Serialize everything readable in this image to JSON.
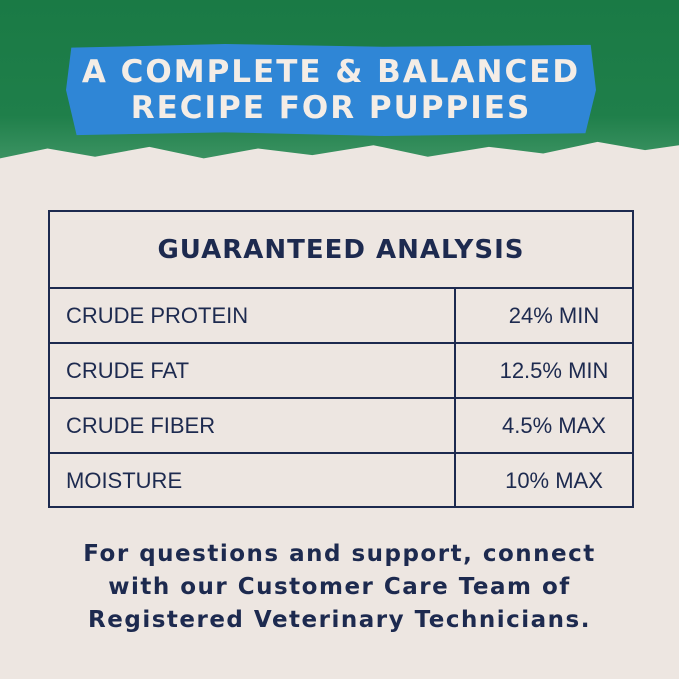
{
  "banner": {
    "line1": "A COMPLETE & BALANCED",
    "line2": "RECIPE FOR PUPPIES"
  },
  "table": {
    "title": "GUARANTEED ANALYSIS",
    "rows": [
      {
        "label": "CRUDE PROTEIN",
        "value": "24% MIN"
      },
      {
        "label": "CRUDE FAT",
        "value": "12.5% MIN"
      },
      {
        "label": "CRUDE FIBER",
        "value": "4.5% MAX"
      },
      {
        "label": "MOISTURE",
        "value": "10% MAX"
      }
    ]
  },
  "footer": {
    "line1": "For questions and support, connect",
    "line2": "with our Customer Care Team of",
    "line3": "Registered Veterinary Technicians."
  },
  "colors": {
    "green": "#1f7f4a",
    "blue": "#2f86d6",
    "navy": "#1d2a4f",
    "background": "#ede6e1"
  }
}
